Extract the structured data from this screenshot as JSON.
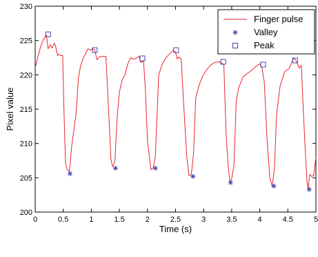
{
  "chart_data": {
    "type": "line",
    "title": "",
    "xlabel": "Time (s)",
    "ylabel": "Pixel value",
    "xlim": [
      0,
      5
    ],
    "ylim": [
      200,
      230
    ],
    "xticks": [
      0,
      0.5,
      1,
      1.5,
      2,
      2.5,
      3,
      3.5,
      4,
      4.5,
      5
    ],
    "xtick_labels": [
      "0",
      "0.5",
      "1",
      "1.5",
      "2",
      "2.5",
      "3",
      "3.5",
      "4",
      "4.5",
      "5"
    ],
    "yticks": [
      200,
      205,
      210,
      215,
      220,
      225,
      230
    ],
    "ytick_labels": [
      "200",
      "205",
      "210",
      "215",
      "220",
      "225",
      "230"
    ],
    "grid": false,
    "legend_position": "top-right",
    "series": [
      {
        "name": "Finger pulse",
        "style": "line",
        "color": "#e8232e",
        "x": [
          0.0,
          0.05,
          0.1,
          0.15,
          0.2,
          0.23,
          0.27,
          0.3,
          0.34,
          0.36,
          0.4,
          0.43,
          0.46,
          0.49,
          0.51,
          0.54,
          0.57,
          0.61,
          0.65,
          0.69,
          0.73,
          0.77,
          0.81,
          0.85,
          0.89,
          0.94,
          0.98,
          1.02,
          1.06,
          1.1,
          1.14,
          1.2,
          1.26,
          1.32,
          1.35,
          1.38,
          1.42,
          1.46,
          1.5,
          1.55,
          1.6,
          1.65,
          1.7,
          1.75,
          1.8,
          1.85,
          1.88,
          1.93,
          1.96,
          2.0,
          2.06,
          2.1,
          2.14,
          2.17,
          2.2,
          2.26,
          2.33,
          2.4,
          2.46,
          2.5,
          2.53,
          2.56,
          2.6,
          2.65,
          2.7,
          2.74,
          2.78,
          2.82,
          2.86,
          2.92,
          2.98,
          3.05,
          3.12,
          3.2,
          3.28,
          3.36,
          3.4,
          3.44,
          3.47,
          3.5,
          3.54,
          3.58,
          3.62,
          3.7,
          3.78,
          3.86,
          3.94,
          4.0,
          4.04,
          4.08,
          4.13,
          4.18,
          4.22,
          4.26,
          4.3,
          4.36,
          4.44,
          4.52,
          4.6,
          4.63,
          4.66,
          4.7,
          4.74,
          4.78,
          4.81,
          4.84,
          4.86,
          4.89,
          4.92,
          4.96,
          5.0
        ],
        "y": [
          221.0,
          222.7,
          224.2,
          225.2,
          225.8,
          223.8,
          224.4,
          223.9,
          224.6,
          224.3,
          222.8,
          223.0,
          222.8,
          222.8,
          215.6,
          207.2,
          206.2,
          205.9,
          209.6,
          212.0,
          214.5,
          219.5,
          221.4,
          222.3,
          223.0,
          223.8,
          223.6,
          223.8,
          223.6,
          222.2,
          222.6,
          222.7,
          222.7,
          212.8,
          207.6,
          206.6,
          207.4,
          213.8,
          217.5,
          219.3,
          220.0,
          221.6,
          222.5,
          222.3,
          222.4,
          222.7,
          221.8,
          222.0,
          218.3,
          210.5,
          206.2,
          206.4,
          208.0,
          214.0,
          220.0,
          221.5,
          222.5,
          223.1,
          223.6,
          223.3,
          222.3,
          222.6,
          222.3,
          215.0,
          208.1,
          205.3,
          205.4,
          208.5,
          216.7,
          218.5,
          219.8,
          220.7,
          221.4,
          221.8,
          221.9,
          221.5,
          211.4,
          206.5,
          204.3,
          204.9,
          206.8,
          216.1,
          218.0,
          219.7,
          220.2,
          220.7,
          221.3,
          221.6,
          221.0,
          219.0,
          210.5,
          205.0,
          203.8,
          206.2,
          214.3,
          218.3,
          220.4,
          220.9,
          222.4,
          222.2,
          221.9,
          221.0,
          221.4,
          214.0,
          209.0,
          204.5,
          203.3,
          205.5,
          205.2,
          205.3,
          208.0
        ]
      },
      {
        "name": "Valley",
        "style": "star-markers",
        "color": "#3f48b4",
        "x": [
          0.62,
          1.43,
          2.14,
          2.81,
          3.48,
          4.25,
          4.88
        ],
        "y": [
          205.6,
          206.4,
          206.4,
          205.2,
          204.3,
          203.8,
          203.3
        ]
      },
      {
        "name": "Peak",
        "style": "square-markers",
        "color": "#3f48b4",
        "x": [
          0.23,
          1.06,
          1.91,
          2.51,
          3.35,
          4.06,
          4.63
        ],
        "y": [
          225.9,
          223.6,
          222.4,
          223.6,
          221.9,
          221.5,
          222.1
        ]
      }
    ]
  }
}
